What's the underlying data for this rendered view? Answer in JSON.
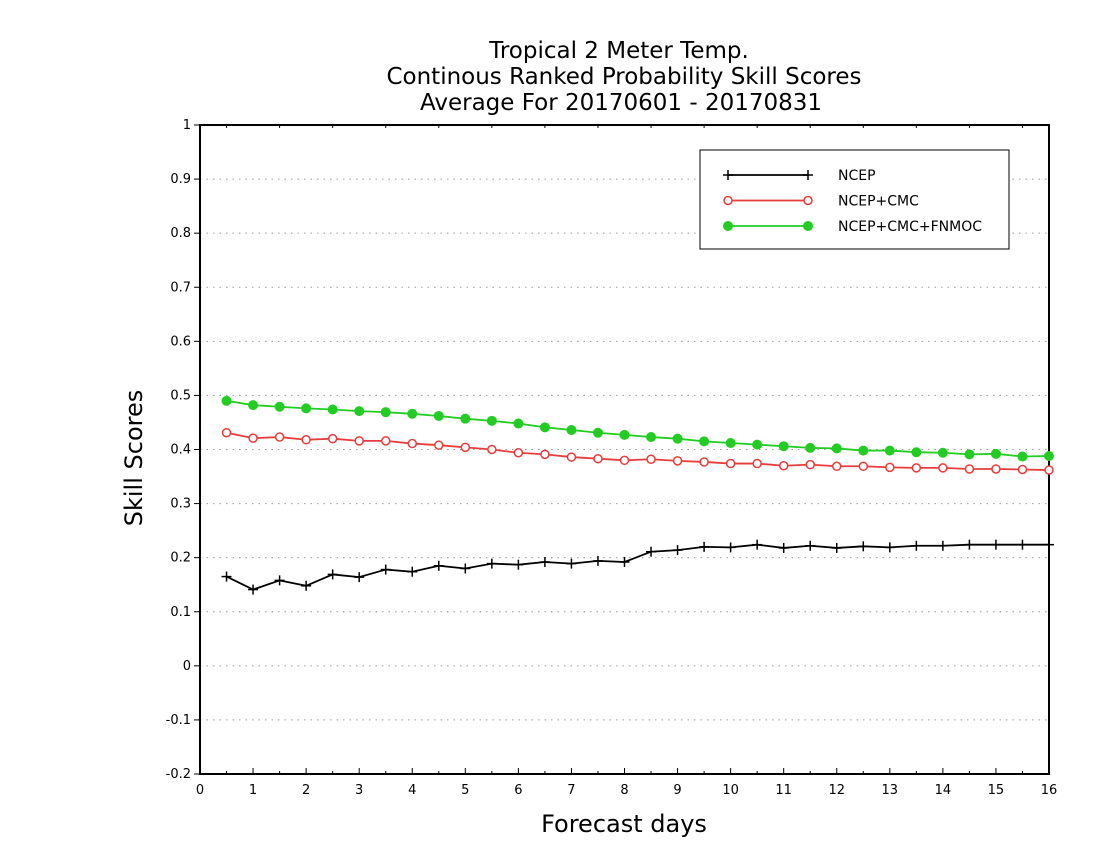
{
  "chart_data": {
    "type": "line",
    "title": [
      "Tropical 2 Meter Temp.",
      "Continous Ranked Probability Skill Scores",
      "Average For 20170601 - 20170831"
    ],
    "xlabel": "Forecast days",
    "ylabel": "Skill Scores",
    "xlim": [
      0,
      16
    ],
    "ylim": [
      -0.2,
      1
    ],
    "xticks": [
      "0",
      "1",
      "2",
      "3",
      "4",
      "5",
      "6",
      "7",
      "8",
      "9",
      "10",
      "11",
      "12",
      "13",
      "14",
      "15",
      "16"
    ],
    "yticks": [
      "1",
      "0.9",
      "0.8",
      "0.7",
      "0.6",
      "0.5",
      "0.4",
      "0.3",
      "0.2",
      "0.1",
      "0",
      "-0.1",
      "-0.2"
    ],
    "grid": "horizontal dotted",
    "legend_position": "top-right",
    "x": [
      0.5,
      1,
      1.5,
      2,
      2.5,
      3,
      3.5,
      4,
      4.5,
      5,
      5.5,
      6,
      6.5,
      7,
      7.5,
      8,
      8.5,
      9,
      9.5,
      10,
      10.5,
      11,
      11.5,
      12,
      12.5,
      13,
      13.5,
      14,
      14.5,
      15,
      15.5,
      16
    ],
    "series": [
      {
        "name": "NCEP",
        "color": "#000000",
        "marker": "plus",
        "values": [
          0.165,
          0.141,
          0.158,
          0.148,
          0.169,
          0.164,
          0.178,
          0.174,
          0.185,
          0.18,
          0.189,
          0.187,
          0.192,
          0.189,
          0.194,
          0.192,
          0.211,
          0.214,
          0.22,
          0.219,
          0.224,
          0.218,
          0.222,
          0.218,
          0.221,
          0.219,
          0.222,
          0.222,
          0.224,
          0.224,
          0.224,
          0.224
        ]
      },
      {
        "name": "NCEP+CMC",
        "color": "#e83c3c",
        "marker": "open-circle",
        "values": [
          0.431,
          0.421,
          0.423,
          0.418,
          0.42,
          0.416,
          0.416,
          0.411,
          0.408,
          0.404,
          0.4,
          0.394,
          0.391,
          0.386,
          0.383,
          0.38,
          0.382,
          0.379,
          0.377,
          0.374,
          0.374,
          0.37,
          0.372,
          0.369,
          0.369,
          0.367,
          0.366,
          0.366,
          0.364,
          0.364,
          0.363,
          0.362
        ]
      },
      {
        "name": "NCEP+CMC+FNMOC",
        "color": "#22cc22",
        "marker": "filled-circle",
        "values": [
          0.49,
          0.482,
          0.479,
          0.476,
          0.474,
          0.471,
          0.469,
          0.466,
          0.462,
          0.457,
          0.453,
          0.448,
          0.441,
          0.436,
          0.431,
          0.427,
          0.423,
          0.42,
          0.415,
          0.412,
          0.409,
          0.406,
          0.403,
          0.402,
          0.398,
          0.398,
          0.395,
          0.394,
          0.391,
          0.392,
          0.387,
          0.388
        ]
      }
    ]
  }
}
